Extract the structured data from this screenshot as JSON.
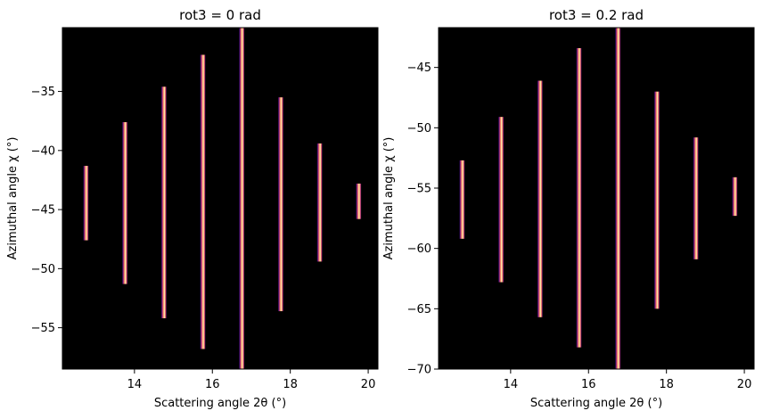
{
  "chart_data": [
    {
      "type": "heatmap",
      "title": "rot3 = 0 rad",
      "xlabel": "Scattering angle 2θ (°)",
      "ylabel": "Azimuthal angle χ (°)",
      "xlim": [
        12.15,
        20.25
      ],
      "ylim": [
        -58.5,
        -29.6
      ],
      "xticks": [
        14,
        16,
        18,
        20
      ],
      "yticks": [
        -55,
        -50,
        -45,
        -40,
        -35
      ],
      "colormap": "inferno",
      "background": "#000000",
      "stripes": [
        {
          "x": 12.75,
          "chi_min": -47.6,
          "chi_max": -41.3
        },
        {
          "x": 13.75,
          "chi_min": -51.3,
          "chi_max": -37.6
        },
        {
          "x": 14.75,
          "chi_min": -54.2,
          "chi_max": -34.6
        },
        {
          "x": 15.75,
          "chi_min": -56.8,
          "chi_max": -31.9
        },
        {
          "x": 16.75,
          "chi_min": -58.5,
          "chi_max": -29.6
        },
        {
          "x": 17.75,
          "chi_min": -53.6,
          "chi_max": -35.5
        },
        {
          "x": 18.75,
          "chi_min": -49.4,
          "chi_max": -39.4
        },
        {
          "x": 19.75,
          "chi_min": -45.8,
          "chi_max": -42.8
        }
      ]
    },
    {
      "type": "heatmap",
      "title": "rot3 = 0.2 rad",
      "xlabel": "Scattering angle 2θ (°)",
      "ylabel": "Azimuthal angle χ (°)",
      "xlim": [
        12.15,
        20.25
      ],
      "ylim": [
        -70,
        -41.7
      ],
      "xticks": [
        14,
        16,
        18,
        20
      ],
      "yticks": [
        -70,
        -65,
        -60,
        -55,
        -50,
        -45
      ],
      "colormap": "inferno",
      "background": "#000000",
      "stripes": [
        {
          "x": 12.75,
          "chi_min": -59.2,
          "chi_max": -52.7
        },
        {
          "x": 13.75,
          "chi_min": -62.8,
          "chi_max": -49.1
        },
        {
          "x": 14.75,
          "chi_min": -65.7,
          "chi_max": -46.1
        },
        {
          "x": 15.75,
          "chi_min": -68.2,
          "chi_max": -43.4
        },
        {
          "x": 16.75,
          "chi_min": -70.0,
          "chi_max": -41.7
        },
        {
          "x": 17.75,
          "chi_min": -65.0,
          "chi_max": -47.0
        },
        {
          "x": 18.75,
          "chi_min": -60.9,
          "chi_max": -50.8
        },
        {
          "x": 19.75,
          "chi_min": -57.3,
          "chi_max": -54.1
        }
      ]
    }
  ]
}
